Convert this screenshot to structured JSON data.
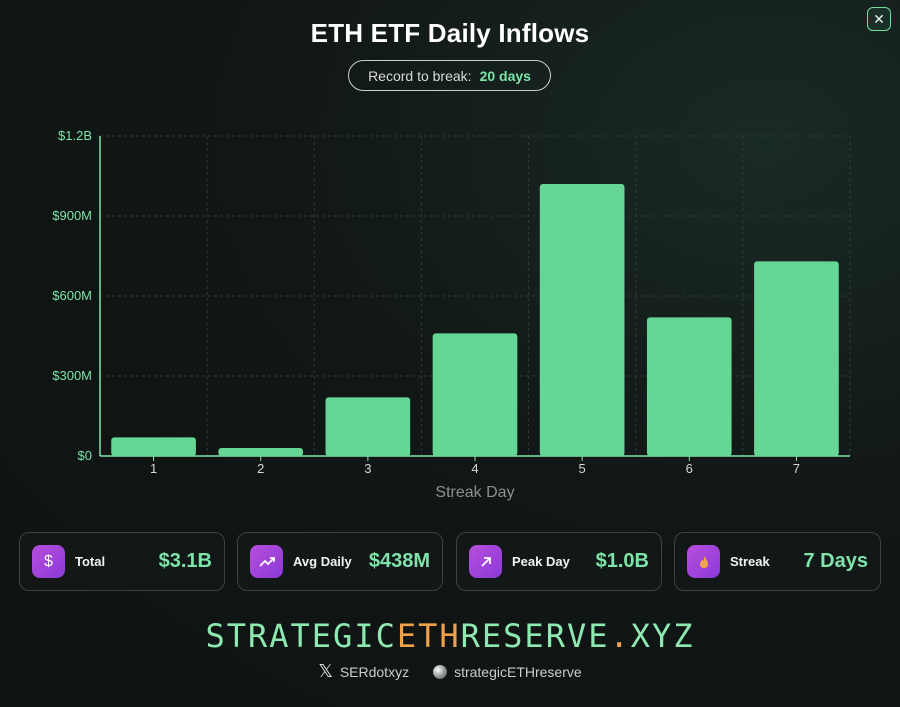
{
  "header": {
    "title": "ETH ETF Daily Inflows",
    "record_label": "Record to break:",
    "record_value": "20 days",
    "close_icon": "close-icon"
  },
  "chart_data": {
    "type": "bar",
    "xlabel": "Streak Day",
    "ylabel": "",
    "categories": [
      "1",
      "2",
      "3",
      "4",
      "5",
      "6",
      "7"
    ],
    "values": [
      70000000,
      30000000,
      220000000,
      460000000,
      1020000000,
      520000000,
      730000000
    ],
    "ylim": [
      0,
      1200000000
    ],
    "yticks": [
      0,
      300000000,
      600000000,
      900000000,
      1200000000
    ],
    "ytick_labels": [
      "$0",
      "$300M",
      "$600M",
      "$900M",
      "$1.2B"
    ],
    "grid": true,
    "bar_color": "#66d695"
  },
  "stats": [
    {
      "label": "Total",
      "value": "$3.1B",
      "icon": "dollar-icon"
    },
    {
      "label": "Avg Daily",
      "value": "$438M",
      "icon": "trend-up-icon"
    },
    {
      "label": "Peak Day",
      "value": "$1.0B",
      "icon": "arrow-up-right-icon"
    },
    {
      "label": "Streak",
      "value": "7 Days",
      "icon": "flame-icon"
    }
  ],
  "brand": {
    "left": "STRATEGIC",
    "mid": "ETH",
    "right": "RESERVE",
    "dot": ".",
    "tld": "XYZ"
  },
  "socials": [
    {
      "handle": "SERdotxyz",
      "icon": "x-logo-icon"
    },
    {
      "handle": "strategicETHreserve",
      "icon": "orb-icon"
    }
  ],
  "colors": {
    "accent": "#7ee3a8",
    "bar": "#66d695",
    "icon_bg": "#a044da",
    "brand_mid": "#f0a24a"
  }
}
